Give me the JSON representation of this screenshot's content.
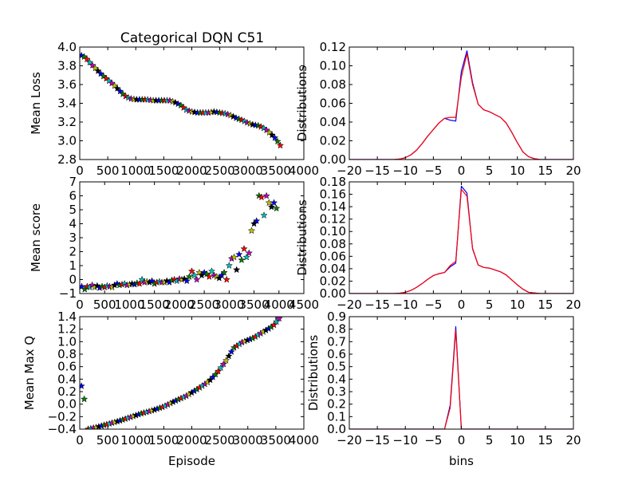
{
  "figure": {
    "title": "Categorical DQN C51",
    "marker_colors": [
      "#0000ff",
      "#008000",
      "#ff0000",
      "#00bfbf",
      "#bf00bf",
      "#bfbf00",
      "#000000"
    ],
    "line_colors": {
      "blue": "#0000ff",
      "red": "#ff0000"
    }
  },
  "chart_data": [
    {
      "id": "loss",
      "type": "scatter",
      "marker": "star",
      "title": "Categorical DQN C51",
      "xlabel": "",
      "ylabel": "Mean Loss",
      "xlim": [
        0,
        4000
      ],
      "ylim": [
        2.8,
        4.0
      ],
      "xticks": [
        "0",
        "500",
        "1000",
        "1500",
        "2000",
        "2500",
        "3000",
        "3500",
        "4000"
      ],
      "yticks": [
        "2.8",
        "3.0",
        "3.2",
        "3.4",
        "3.6",
        "3.8",
        "4.0"
      ],
      "x_range": [
        30,
        3580
      ],
      "key_points": [
        [
          30,
          3.91
        ],
        [
          100,
          3.89
        ],
        [
          200,
          3.82
        ],
        [
          300,
          3.76
        ],
        [
          400,
          3.7
        ],
        [
          500,
          3.65
        ],
        [
          600,
          3.6
        ],
        [
          700,
          3.54
        ],
        [
          800,
          3.48
        ],
        [
          900,
          3.45
        ],
        [
          1000,
          3.44
        ],
        [
          1200,
          3.44
        ],
        [
          1300,
          3.43
        ],
        [
          1500,
          3.43
        ],
        [
          1600,
          3.43
        ],
        [
          1700,
          3.41
        ],
        [
          1800,
          3.38
        ],
        [
          1900,
          3.33
        ],
        [
          2000,
          3.31
        ],
        [
          2100,
          3.3
        ],
        [
          2300,
          3.3
        ],
        [
          2400,
          3.31
        ],
        [
          2500,
          3.3
        ],
        [
          2600,
          3.29
        ],
        [
          2700,
          3.27
        ],
        [
          2800,
          3.24
        ],
        [
          2900,
          3.22
        ],
        [
          3000,
          3.19
        ],
        [
          3100,
          3.17
        ],
        [
          3200,
          3.16
        ],
        [
          3300,
          3.13
        ],
        [
          3400,
          3.08
        ],
        [
          3500,
          3.02
        ],
        [
          3580,
          2.95
        ]
      ]
    },
    {
      "id": "dist1",
      "type": "line",
      "xlabel": "",
      "ylabel": "Distributions",
      "xlim": [
        -20,
        20
      ],
      "ylim": [
        0.0,
        0.12
      ],
      "xticks": [
        "−20",
        "−15",
        "−10",
        "−5",
        "0",
        "5",
        "10",
        "15",
        "20"
      ],
      "yticks": [
        "0.00",
        "0.02",
        "0.04",
        "0.06",
        "0.08",
        "0.10",
        "0.12"
      ],
      "x": [
        -20,
        -12,
        -11,
        -10,
        -9,
        -8,
        -7,
        -6,
        -5,
        -4,
        -3,
        -2,
        -1,
        0,
        1,
        2,
        3,
        4,
        5,
        6,
        7,
        8,
        9,
        10,
        11,
        12,
        13,
        14,
        20
      ],
      "series": [
        {
          "color": "#0000ff",
          "values": [
            0,
            0,
            0.0005,
            0.002,
            0.005,
            0.01,
            0.017,
            0.025,
            0.032,
            0.039,
            0.044,
            0.042,
            0.041,
            0.094,
            0.116,
            0.082,
            0.059,
            0.053,
            0.051,
            0.048,
            0.045,
            0.039,
            0.029,
            0.018,
            0.008,
            0.003,
            0.001,
            0,
            0
          ]
        },
        {
          "color": "#ff0000",
          "values": [
            0,
            0,
            0.0005,
            0.002,
            0.005,
            0.01,
            0.017,
            0.025,
            0.032,
            0.039,
            0.044,
            0.045,
            0.045,
            0.088,
            0.113,
            0.08,
            0.059,
            0.053,
            0.051,
            0.048,
            0.045,
            0.039,
            0.029,
            0.018,
            0.008,
            0.003,
            0.001,
            0,
            0
          ]
        }
      ]
    },
    {
      "id": "score",
      "type": "scatter",
      "marker": "star",
      "xlabel": "",
      "ylabel": "Mean score",
      "xlim": [
        0,
        4500
      ],
      "ylim": [
        -1,
        7
      ],
      "xticks": [
        "0",
        "500",
        "1000",
        "1500",
        "2000",
        "2500",
        "3000",
        "3500",
        "4000",
        "4500"
      ],
      "yticks": [
        "−1",
        "0",
        "1",
        "2",
        "3",
        "4",
        "5",
        "6",
        "7"
      ],
      "points": [
        [
          40,
          -0.5
        ],
        [
          100,
          -0.7
        ],
        [
          150,
          -0.5
        ],
        [
          200,
          -0.55
        ],
        [
          250,
          -0.4
        ],
        [
          300,
          -0.55
        ],
        [
          350,
          -0.45
        ],
        [
          400,
          -0.6
        ],
        [
          450,
          -0.5
        ],
        [
          500,
          -0.55
        ],
        [
          550,
          -0.45
        ],
        [
          600,
          -0.5
        ],
        [
          650,
          -0.55
        ],
        [
          700,
          -0.4
        ],
        [
          750,
          -0.3
        ],
        [
          800,
          -0.4
        ],
        [
          850,
          -0.35
        ],
        [
          900,
          -0.3
        ],
        [
          950,
          -0.4
        ],
        [
          1000,
          -0.35
        ],
        [
          1050,
          -0.3
        ],
        [
          1100,
          -0.35
        ],
        [
          1150,
          -0.25
        ],
        [
          1200,
          -0.3
        ],
        [
          1250,
          0.0
        ],
        [
          1300,
          -0.2
        ],
        [
          1350,
          -0.15
        ],
        [
          1400,
          -0.2
        ],
        [
          1450,
          -0.1
        ],
        [
          1500,
          -0.3
        ],
        [
          1550,
          -0.2
        ],
        [
          1600,
          -0.15
        ],
        [
          1650,
          -0.2
        ],
        [
          1700,
          -0.2
        ],
        [
          1750,
          -0.1
        ],
        [
          1800,
          -0.2
        ],
        [
          1850,
          -0.05
        ],
        [
          1900,
          0.0
        ],
        [
          1950,
          -0.1
        ],
        [
          2000,
          0.05
        ],
        [
          2050,
          0.0
        ],
        [
          2100,
          0.05
        ],
        [
          2150,
          -0.1
        ],
        [
          2200,
          0.2
        ],
        [
          2250,
          0.6
        ],
        [
          2300,
          0.3
        ],
        [
          2350,
          0.0
        ],
        [
          2400,
          0.5
        ],
        [
          2450,
          0.3
        ],
        [
          2500,
          0.5
        ],
        [
          2550,
          0.4
        ],
        [
          2600,
          0.2
        ],
        [
          2650,
          0.6
        ],
        [
          2700,
          0.3
        ],
        [
          2750,
          0.2
        ],
        [
          2800,
          0.1
        ],
        [
          2850,
          0.3
        ],
        [
          2900,
          0.5
        ],
        [
          2950,
          0.0
        ],
        [
          3000,
          1.0
        ],
        [
          3050,
          1.5
        ],
        [
          3100,
          1.6
        ],
        [
          3150,
          0.7
        ],
        [
          3200,
          1.8
        ],
        [
          3250,
          1.4
        ],
        [
          3300,
          2.2
        ],
        [
          3350,
          1.6
        ],
        [
          3400,
          1.9
        ],
        [
          3450,
          3.5
        ],
        [
          3500,
          4.0
        ],
        [
          3550,
          4.2
        ],
        [
          3600,
          6.0
        ],
        [
          3650,
          5.9
        ],
        [
          3700,
          4.6
        ],
        [
          3750,
          6.0
        ],
        [
          3800,
          5.5
        ],
        [
          3850,
          5.2
        ],
        [
          3900,
          5.5
        ],
        [
          3950,
          5.1
        ]
      ]
    },
    {
      "id": "dist2",
      "type": "line",
      "xlabel": "",
      "ylabel": "Distributions",
      "xlim": [
        -20,
        20
      ],
      "ylim": [
        0.0,
        0.18
      ],
      "xticks": [
        "−20",
        "−15",
        "−10",
        "−5",
        "0",
        "5",
        "10",
        "15",
        "20"
      ],
      "yticks": [
        "0.00",
        "0.02",
        "0.04",
        "0.06",
        "0.08",
        "0.10",
        "0.12",
        "0.14",
        "0.16",
        "0.18"
      ],
      "x": [
        -20,
        -12,
        -11,
        -10,
        -9,
        -8,
        -7,
        -6,
        -5,
        -4,
        -3,
        -2,
        -1,
        0,
        1,
        2,
        3,
        4,
        5,
        6,
        7,
        8,
        9,
        10,
        11,
        12,
        13,
        14,
        20
      ],
      "series": [
        {
          "color": "#0000ff",
          "values": [
            0,
            0,
            0.0005,
            0.002,
            0.005,
            0.01,
            0.016,
            0.023,
            0.029,
            0.032,
            0.034,
            0.043,
            0.049,
            0.173,
            0.162,
            0.072,
            0.046,
            0.042,
            0.041,
            0.038,
            0.035,
            0.03,
            0.022,
            0.014,
            0.007,
            0.002,
            0.001,
            0,
            0
          ]
        },
        {
          "color": "#ff0000",
          "values": [
            0,
            0,
            0.0005,
            0.002,
            0.005,
            0.01,
            0.016,
            0.023,
            0.029,
            0.032,
            0.034,
            0.045,
            0.052,
            0.168,
            0.157,
            0.073,
            0.046,
            0.042,
            0.041,
            0.038,
            0.035,
            0.03,
            0.022,
            0.014,
            0.007,
            0.002,
            0.001,
            0,
            0
          ]
        }
      ]
    },
    {
      "id": "maxq",
      "type": "scatter",
      "marker": "star",
      "xlabel": "Episode",
      "ylabel": "Mean Max Q",
      "xlim": [
        0,
        4000
      ],
      "ylim": [
        -0.4,
        1.4
      ],
      "xticks": [
        "0",
        "500",
        "1000",
        "1500",
        "2000",
        "2500",
        "3000",
        "3500",
        "4000"
      ],
      "yticks": [
        "−0.4",
        "−0.2",
        "0.0",
        "0.2",
        "0.4",
        "0.6",
        "0.8",
        "1.0",
        "1.2",
        "1.4"
      ],
      "outliers": [
        [
          30,
          0.29
        ],
        [
          80,
          0.08
        ]
      ],
      "x_range": [
        150,
        3560
      ],
      "key_points": [
        [
          150,
          -0.4
        ],
        [
          300,
          -0.37
        ],
        [
          500,
          -0.32
        ],
        [
          700,
          -0.27
        ],
        [
          900,
          -0.21
        ],
        [
          1100,
          -0.15
        ],
        [
          1300,
          -0.1
        ],
        [
          1500,
          -0.04
        ],
        [
          1700,
          0.05
        ],
        [
          1900,
          0.13
        ],
        [
          2100,
          0.24
        ],
        [
          2300,
          0.36
        ],
        [
          2450,
          0.5
        ],
        [
          2600,
          0.68
        ],
        [
          2750,
          0.9
        ],
        [
          2900,
          0.99
        ],
        [
          3100,
          1.06
        ],
        [
          3300,
          1.17
        ],
        [
          3450,
          1.25
        ],
        [
          3560,
          1.37
        ]
      ]
    },
    {
      "id": "dist3",
      "type": "line",
      "xlabel": "bins",
      "ylabel": "Distributions",
      "xlim": [
        -20,
        20
      ],
      "ylim": [
        0.0,
        0.9
      ],
      "xticks": [
        "−20",
        "−15",
        "−10",
        "−5",
        "0",
        "5",
        "10",
        "15",
        "20"
      ],
      "yticks": [
        "0.0",
        "0.1",
        "0.2",
        "0.3",
        "0.4",
        "0.5",
        "0.6",
        "0.7",
        "0.8",
        "0.9"
      ],
      "x": [
        -20,
        -4,
        -3,
        -2,
        -1,
        0,
        1,
        20
      ],
      "series": [
        {
          "color": "#0000ff",
          "values": [
            0,
            0,
            0.0,
            0.19,
            0.82,
            0.0,
            0,
            0
          ]
        },
        {
          "color": "#ff0000",
          "values": [
            0,
            0,
            0.0,
            0.17,
            0.79,
            0.0,
            0,
            0
          ]
        }
      ]
    }
  ]
}
